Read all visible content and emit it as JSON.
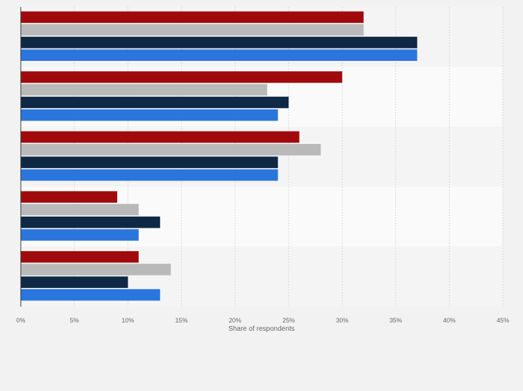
{
  "chart_data": {
    "type": "bar",
    "orientation": "horizontal",
    "categories": [
      "",
      "",
      "",
      "",
      ""
    ],
    "series": [
      {
        "color": "#a10a0d",
        "values": [
          32,
          30,
          26,
          9,
          11
        ]
      },
      {
        "color": "#b9b9b9",
        "values": [
          32,
          23,
          28,
          11,
          14
        ]
      },
      {
        "color": "#0f2845",
        "values": [
          37,
          25,
          24,
          13,
          10
        ]
      },
      {
        "color": "#2a76dd",
        "values": [
          37,
          24,
          24,
          11,
          13
        ]
      }
    ],
    "xlim": [
      0,
      45
    ],
    "x_ticks": [
      "0%",
      "5%",
      "10%",
      "15%",
      "20%",
      "25%",
      "30%",
      "35%",
      "40%",
      "45%"
    ],
    "xlabel": "Share of respondents",
    "grid": true,
    "band_colors": [
      "#f4f4f4",
      "#fafafa"
    ]
  }
}
